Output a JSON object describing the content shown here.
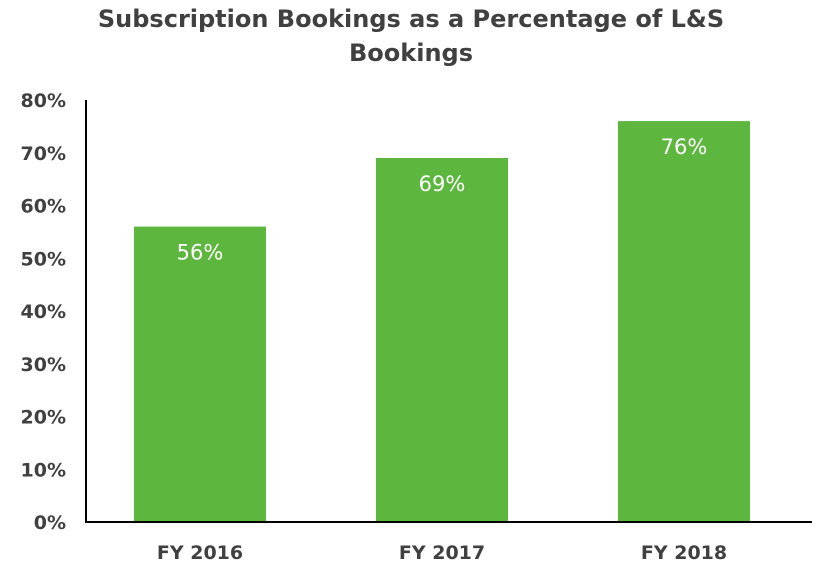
{
  "chart_data": {
    "type": "bar",
    "title": "Subscription Bookings as a Percentage of L&S Bookings",
    "categories": [
      "FY 2016",
      "FY 2017",
      "FY 2018"
    ],
    "values": [
      56,
      69,
      76
    ],
    "data_labels": [
      "56%",
      "69%",
      "76%"
    ],
    "xlabel": "",
    "ylabel": "",
    "ylim": [
      0,
      80
    ],
    "yticks": [
      "0%",
      "10%",
      "20%",
      "30%",
      "40%",
      "50%",
      "60%",
      "70%",
      "80%"
    ],
    "grid": false,
    "legend": "none",
    "colors": {
      "bar": "#5DB63D",
      "text": "#404040",
      "axis": "#000000",
      "label": "#FFFFFF"
    }
  }
}
